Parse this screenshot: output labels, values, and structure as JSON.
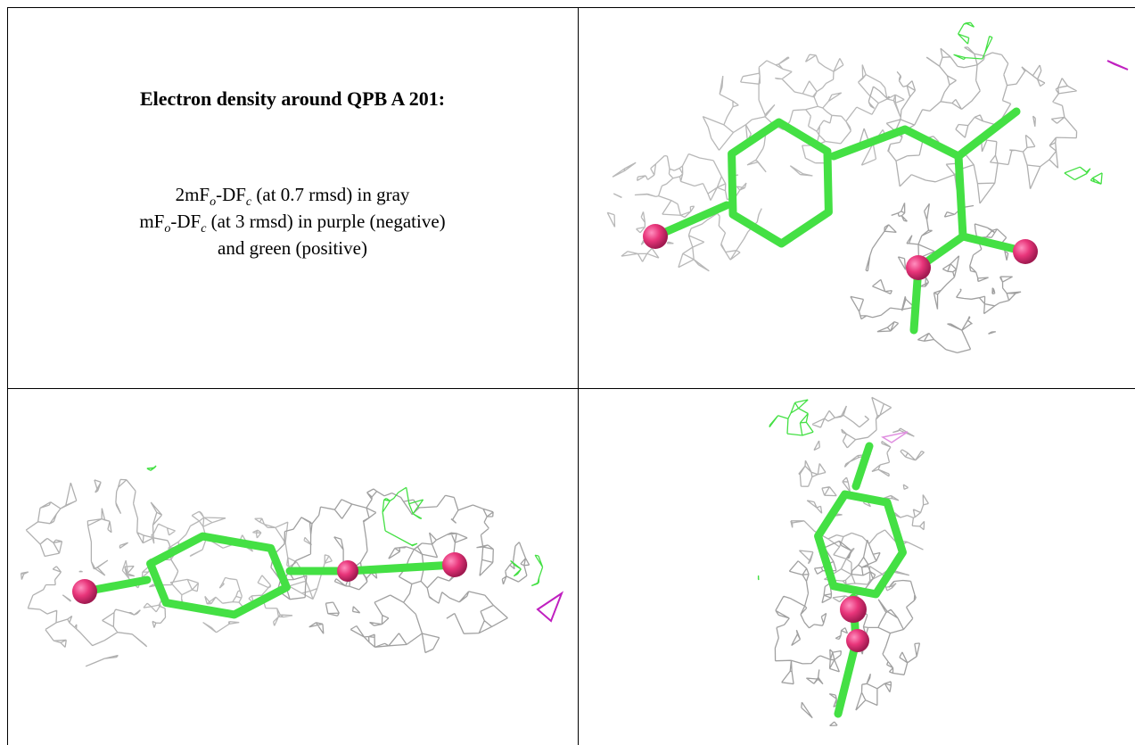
{
  "legend": {
    "title": "Electron density around QPB A 201:",
    "lines": [
      {
        "parts": [
          "2mF",
          "o",
          "-DF",
          "c",
          " (at 0.7 rmsd) in gray"
        ]
      },
      {
        "parts": [
          "mF",
          "o",
          "-DF",
          "c",
          " (at 3 rmsd) in purple (negative)"
        ]
      },
      {
        "parts": [
          "and green (positive)"
        ]
      }
    ]
  }
}
